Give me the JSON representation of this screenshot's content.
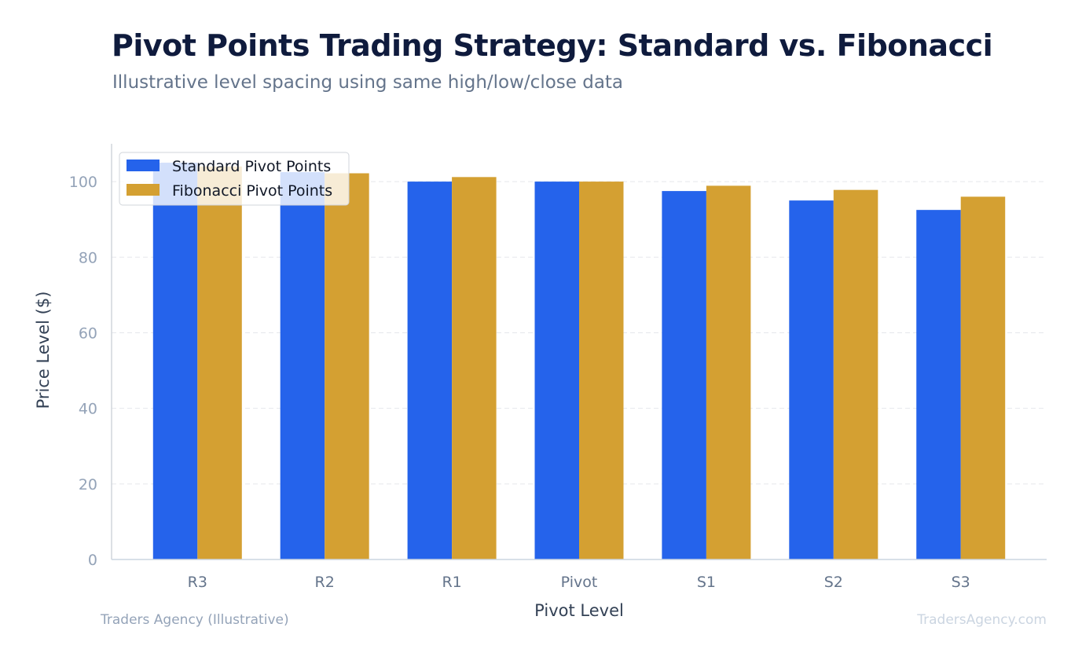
{
  "header": {
    "title": "Pivot Points Trading Strategy: Standard vs. Fibonacci",
    "subtitle": "Illustrative level spacing using same high/low/close data"
  },
  "footer": {
    "source": "Traders Agency (Illustrative)",
    "watermark": "TradersAgency.com"
  },
  "chart_data": {
    "type": "bar",
    "title": "Pivot Points Trading Strategy: Standard vs. Fibonacci",
    "subtitle": "Illustrative level spacing using same high/low/close data",
    "xlabel": "Pivot Level",
    "ylabel": "Price Level ($)",
    "categories": [
      "R3",
      "R2",
      "R1",
      "Pivot",
      "S1",
      "S2",
      "S3"
    ],
    "series": [
      {
        "name": "Standard Pivot Points",
        "color": "#2563eb",
        "values": [
          105,
          102.5,
          100,
          100,
          97.5,
          95,
          92.5
        ]
      },
      {
        "name": "Fibonacci Pivot Points",
        "color": "#d4a032",
        "values": [
          104,
          102.2,
          101.2,
          100,
          98.9,
          97.8,
          96
        ]
      }
    ],
    "ylim": [
      0,
      110
    ],
    "yticks": [
      0,
      20,
      40,
      60,
      80,
      100
    ],
    "grid": true,
    "legend_position": "top-left"
  }
}
